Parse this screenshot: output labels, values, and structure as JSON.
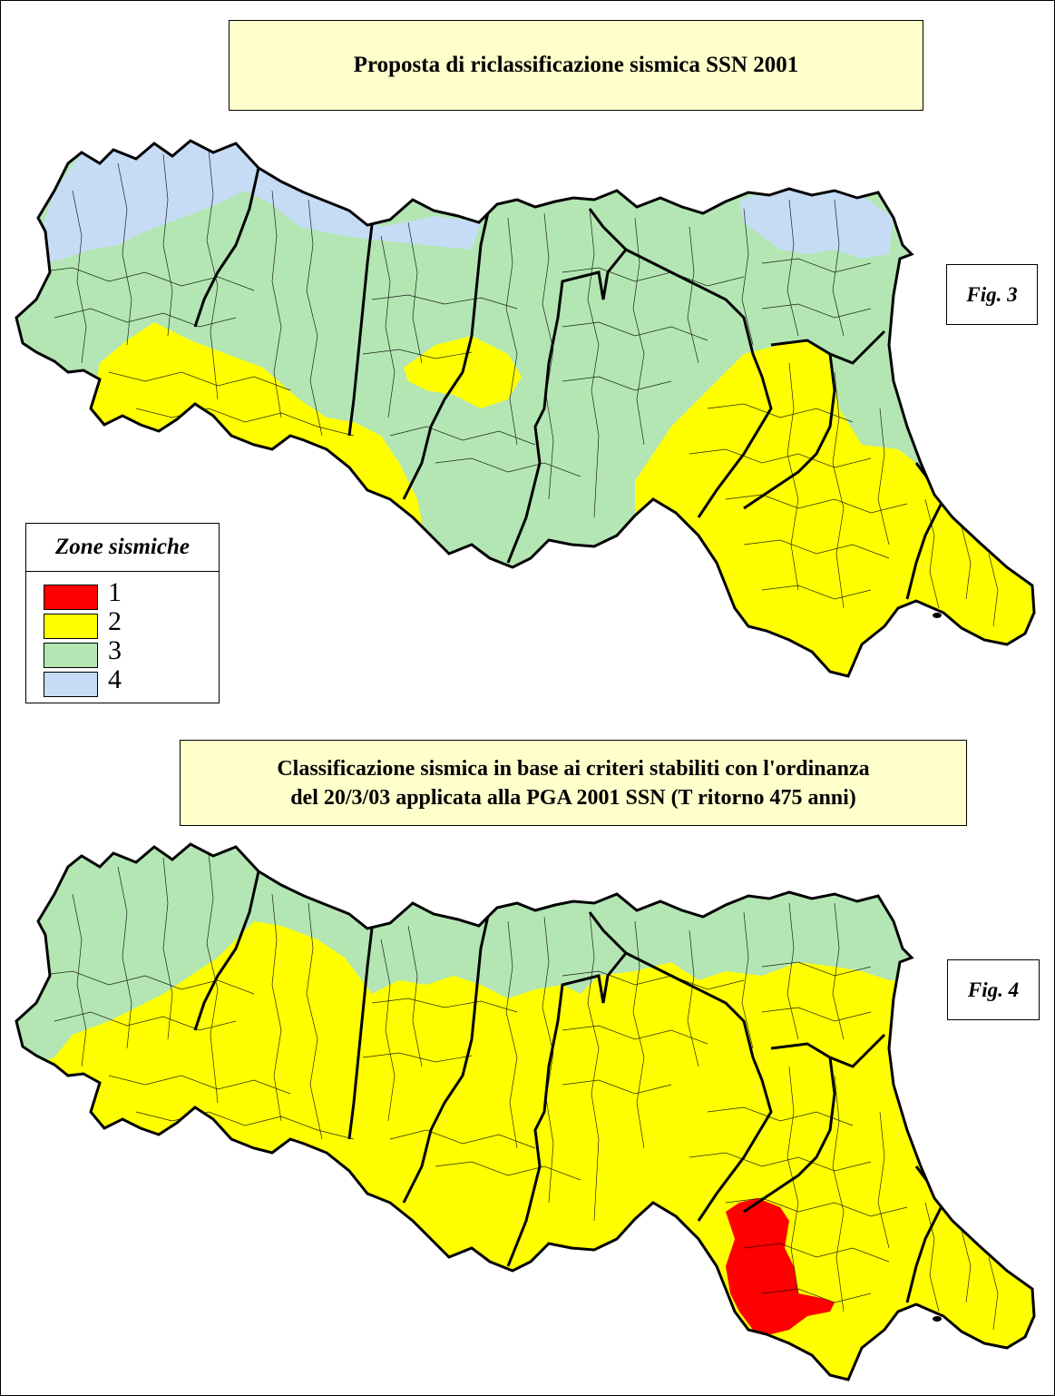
{
  "titles": {
    "fig3_title": "Proposta di riclassificazione sismica SSN 2001",
    "fig4_title_line1": "Classificazione sismica in base ai criteri stabiliti con l'ordinanza",
    "fig4_title_line2": "del 20/3/03 applicata alla PGA 2001 SSN (T ritorno 475 anni)"
  },
  "figure_labels": {
    "fig3": "Fig. 3",
    "fig4": "Fig. 4"
  },
  "legend": {
    "title": "Zone sismiche",
    "items": [
      {
        "label": "1",
        "color": "#ff0000"
      },
      {
        "label": "2",
        "color": "#ffff00"
      },
      {
        "label": "3",
        "color": "#b3e6b3"
      },
      {
        "label": "4",
        "color": "#c6dcf5"
      }
    ]
  },
  "colors": {
    "zone1": "#ff0000",
    "zone2": "#ffff00",
    "zone3": "#b3e6b3",
    "zone4": "#c6dcf5",
    "title_bg": "#ffffcc"
  }
}
